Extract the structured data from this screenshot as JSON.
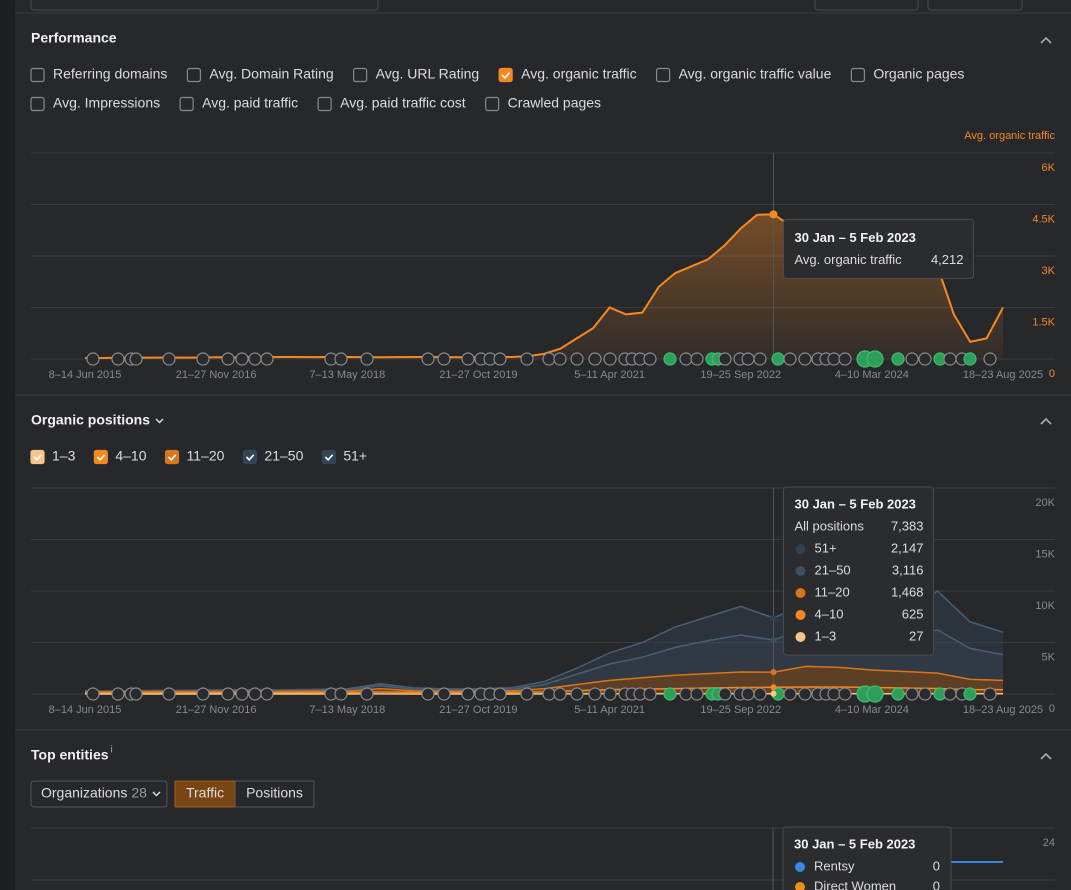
{
  "timeline_labels": [
    "8–14 Jun 2015",
    "21–27 Nov 2016",
    "7–13 May 2018",
    "21–27 Oct 2019",
    "5–11 Apr 2021",
    "19–25 Sep 2022",
    "4–10 Mar 2024",
    "18–23 Aug 2025"
  ],
  "performance": {
    "title": "Performance",
    "metrics": [
      [
        {
          "label": "Referring domains",
          "checked": false
        },
        {
          "label": "Avg. Domain Rating",
          "checked": false
        },
        {
          "label": "Avg. URL Rating",
          "checked": false
        },
        {
          "label": "Avg. organic traffic",
          "checked": true
        },
        {
          "label": "Avg. organic traffic value",
          "checked": false
        },
        {
          "label": "Organic pages",
          "checked": false
        }
      ],
      [
        {
          "label": "Avg. Impressions",
          "checked": false
        },
        {
          "label": "Avg. paid traffic",
          "checked": false
        },
        {
          "label": "Avg. paid traffic cost",
          "checked": false
        },
        {
          "label": "Crawled pages",
          "checked": false
        }
      ]
    ],
    "chart": {
      "type": "area",
      "axis_title": "Avg. organic traffic",
      "color": "#f5891f",
      "ylim": [
        0,
        6000
      ],
      "yticks": [
        0,
        {
          "value": 1500,
          "label": "1.5K"
        },
        {
          "value": 3000,
          "label": "3K"
        },
        {
          "value": 4500,
          "label": "4.5K"
        },
        {
          "value": 6000,
          "label": "6K"
        }
      ],
      "values": [
        30,
        30,
        35,
        40,
        40,
        45,
        40,
        45,
        50,
        45,
        50,
        55,
        60,
        60,
        55,
        60,
        60,
        55,
        50,
        55,
        60,
        60,
        55,
        50,
        50,
        55,
        60,
        80,
        150,
        300,
        600,
        900,
        1500,
        1300,
        1350,
        2100,
        2500,
        2700,
        2900,
        3300,
        3800,
        4200,
        4212,
        3900,
        3500,
        3700,
        3600,
        3500,
        3400,
        3200,
        3300,
        3000,
        2700,
        1300,
        500,
        600,
        1500
      ],
      "hover_index": 42,
      "tooltip": {
        "title": "30 Jan – 5 Feb 2023",
        "label": "Avg. organic traffic",
        "value": "4,212"
      }
    }
  },
  "positions": {
    "title": "Organic positions",
    "chart": {
      "type": "stacked_area",
      "ylim": [
        0,
        20000
      ],
      "yticks": [
        0,
        {
          "value": 5000,
          "label": "5K"
        },
        {
          "value": 10000,
          "label": "10K"
        },
        {
          "value": 15000,
          "label": "15K"
        },
        {
          "value": 20000,
          "label": "20K"
        }
      ],
      "hover_index": 21,
      "series": [
        {
          "name": "1–3",
          "color": "#f7c58a",
          "checked": true,
          "values": [
            5,
            5,
            5,
            5,
            5,
            5,
            5,
            5,
            5,
            10,
            5,
            5,
            5,
            5,
            10,
            15,
            20,
            25,
            25,
            30,
            30,
            27,
            30,
            30,
            30,
            30,
            30,
            25,
            25
          ]
        },
        {
          "name": "4–10",
          "color": "#f5891f",
          "checked": true,
          "values": [
            100,
            100,
            110,
            110,
            120,
            120,
            120,
            130,
            140,
            200,
            150,
            140,
            140,
            150,
            200,
            300,
            400,
            450,
            500,
            550,
            600,
            625,
            650,
            650,
            600,
            550,
            500,
            400,
            400
          ]
        },
        {
          "name": "11–20",
          "color": "#d9761a",
          "checked": true,
          "values": [
            100,
            100,
            110,
            110,
            120,
            120,
            120,
            130,
            140,
            300,
            150,
            140,
            140,
            150,
            300,
            600,
            900,
            1100,
            1300,
            1400,
            1500,
            1468,
            2000,
            1900,
            1700,
            1600,
            1500,
            1000,
            900
          ]
        },
        {
          "name": "21–50",
          "color": "#3d4f63",
          "checked": true,
          "values": [
            50,
            50,
            60,
            60,
            80,
            80,
            80,
            90,
            110,
            300,
            150,
            120,
            120,
            150,
            400,
            1000,
            1600,
            2000,
            2700,
            3200,
            3600,
            3116,
            3700,
            3600,
            3400,
            3200,
            4200,
            3000,
            2500
          ]
        },
        {
          "name": "51+",
          "color": "#324152",
          "checked": true,
          "values": [
            45,
            45,
            65,
            65,
            75,
            75,
            75,
            100,
            105,
            190,
            145,
            95,
            95,
            145,
            290,
            585,
            1080,
            1425,
            1975,
            2320,
            2770,
            2147,
            2420,
            2320,
            2270,
            2120,
            3770,
            2575,
            2175
          ]
        }
      ],
      "tooltip": {
        "title": "30 Jan – 5 Feb 2023",
        "total_name": "All positions",
        "total": "7,383",
        "rows": [
          {
            "name": "51+",
            "value": "2,147",
            "color": "#324152"
          },
          {
            "name": "21–50",
            "value": "3,116",
            "color": "#3d4f63"
          },
          {
            "name": "11–20",
            "value": "1,468",
            "color": "#d9761a"
          },
          {
            "name": "4–10",
            "value": "625",
            "color": "#f5891f"
          },
          {
            "name": "1–3",
            "value": "27",
            "color": "#f7c58a"
          }
        ]
      }
    }
  },
  "entities": {
    "title": "Top entities",
    "info": "i",
    "filter": {
      "label": "Organizations",
      "count": 28
    },
    "tabs": [
      "Traffic",
      "Positions"
    ],
    "active_tab": 0,
    "chart": {
      "yticks": [
        24
      ],
      "tooltip": {
        "title": "30 Jan – 5 Feb 2023",
        "rows": [
          {
            "name": "Rentsy",
            "value": 0,
            "color": "#3a86e0"
          },
          {
            "name": "Direct Women",
            "value": 0,
            "color": "#f5891f"
          }
        ]
      }
    }
  }
}
